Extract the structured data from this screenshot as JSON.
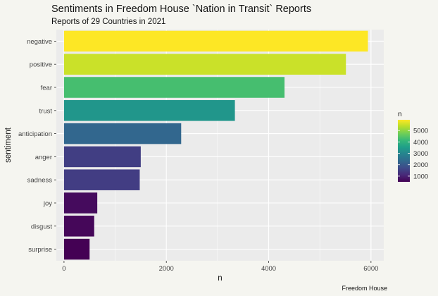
{
  "title": "Sentiments in Freedom House `Nation in Transit` Reports",
  "subtitle": "Reports of 29 Countries in 2021",
  "caption": "Freedom House",
  "chart_data": {
    "type": "bar",
    "orientation": "horizontal",
    "categories": [
      "negative",
      "positive",
      "fear",
      "trust",
      "anticipation",
      "anger",
      "sadness",
      "joy",
      "disgust",
      "surprise"
    ],
    "values": [
      5940,
      5510,
      4310,
      3340,
      2290,
      1500,
      1480,
      650,
      590,
      500
    ],
    "xlabel": "n",
    "ylabel": "sentiment",
    "xlim": [
      -150,
      6250
    ],
    "x_ticks": [
      "0",
      "2000",
      "4000",
      "6000"
    ],
    "x_tick_values": [
      0,
      2000,
      4000,
      6000
    ],
    "grid": true,
    "legend": {
      "title": "n",
      "position": "right",
      "range": [
        500,
        5940
      ],
      "ticks": [
        "1000",
        "2000",
        "3000",
        "4000",
        "5000"
      ],
      "tick_values": [
        1000,
        2000,
        3000,
        4000,
        5000
      ]
    },
    "colors": {
      "panel_background": "#ebebeb",
      "grid": "#ffffff",
      "palette": [
        "#440154",
        "#482878",
        "#3e4a89",
        "#31688e",
        "#26828e",
        "#1f9e89",
        "#35b779",
        "#6ece58",
        "#b5de2b",
        "#fde725"
      ]
    }
  }
}
